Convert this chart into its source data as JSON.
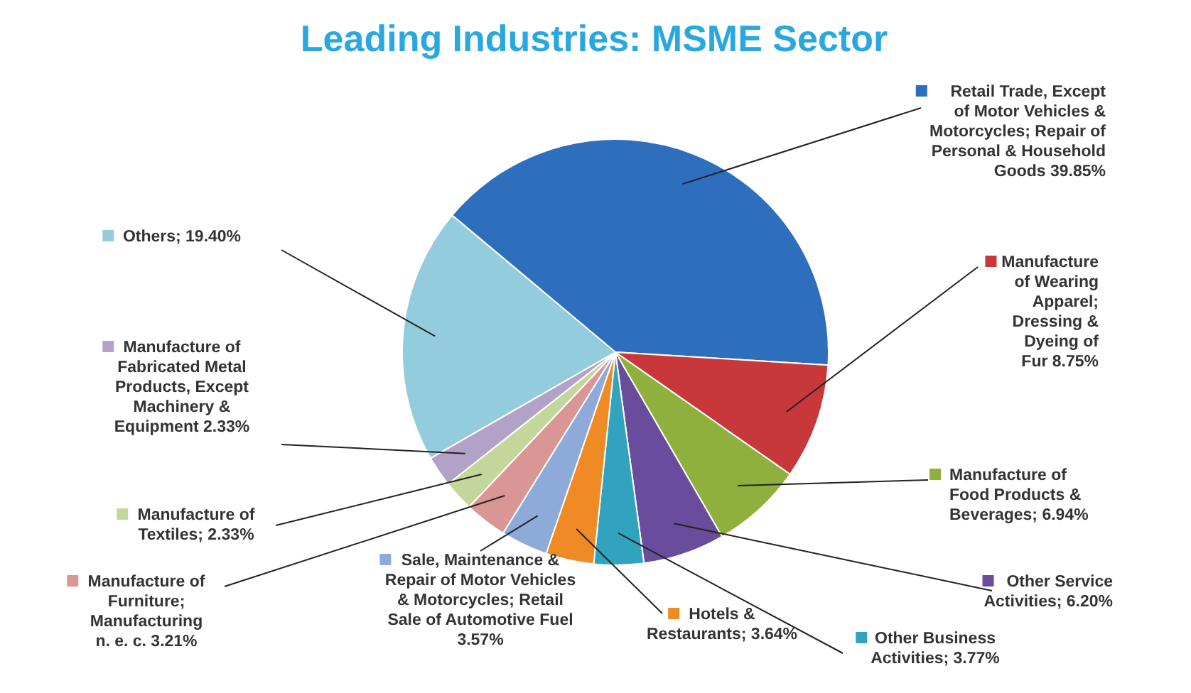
{
  "chart_data": {
    "type": "pie",
    "title": "Leading Industries: MSME Sector",
    "categories": [
      "Retail Trade, Except of Motor Vehicles & Motorcycles; Repair of Personal & Household Goods",
      "Manufacture of Wearing Apparel; Dressing & Dyeing of Fur",
      "Manufacture of Food Products & Beverages",
      "Other Service Activities",
      "Other Business Activities",
      "Hotels & Restaurants",
      "Sale, Maintenance & Repair of Motor Vehicles & Motorcycles; Retail Sale of Automotive Fuel",
      "Manufacture of Furniture; Manufacturing n. e. c.",
      "Manufacture of Textiles",
      "Manufacture of Fabricated Metal Products, Except Machinery & Equipment",
      "Others"
    ],
    "values": [
      39.85,
      8.75,
      6.94,
      6.2,
      3.77,
      3.64,
      3.57,
      3.21,
      2.33,
      2.33,
      19.4
    ],
    "value_labels": [
      "39.85%",
      "8.75%",
      "6.94%",
      "6.20%",
      "3.77%",
      "3.64%",
      "3.57%",
      "3.21%",
      "2.33%",
      "2.33%",
      "19.40%"
    ],
    "colors": [
      "#2e6fbd",
      "#c8383a",
      "#8fb03c",
      "#6a4c9c",
      "#31a3bf",
      "#f08a24",
      "#8eaad8",
      "#d99694",
      "#c4d79b",
      "#b3a2c7",
      "#93cddd"
    ],
    "legend": "bottom left"
  }
}
